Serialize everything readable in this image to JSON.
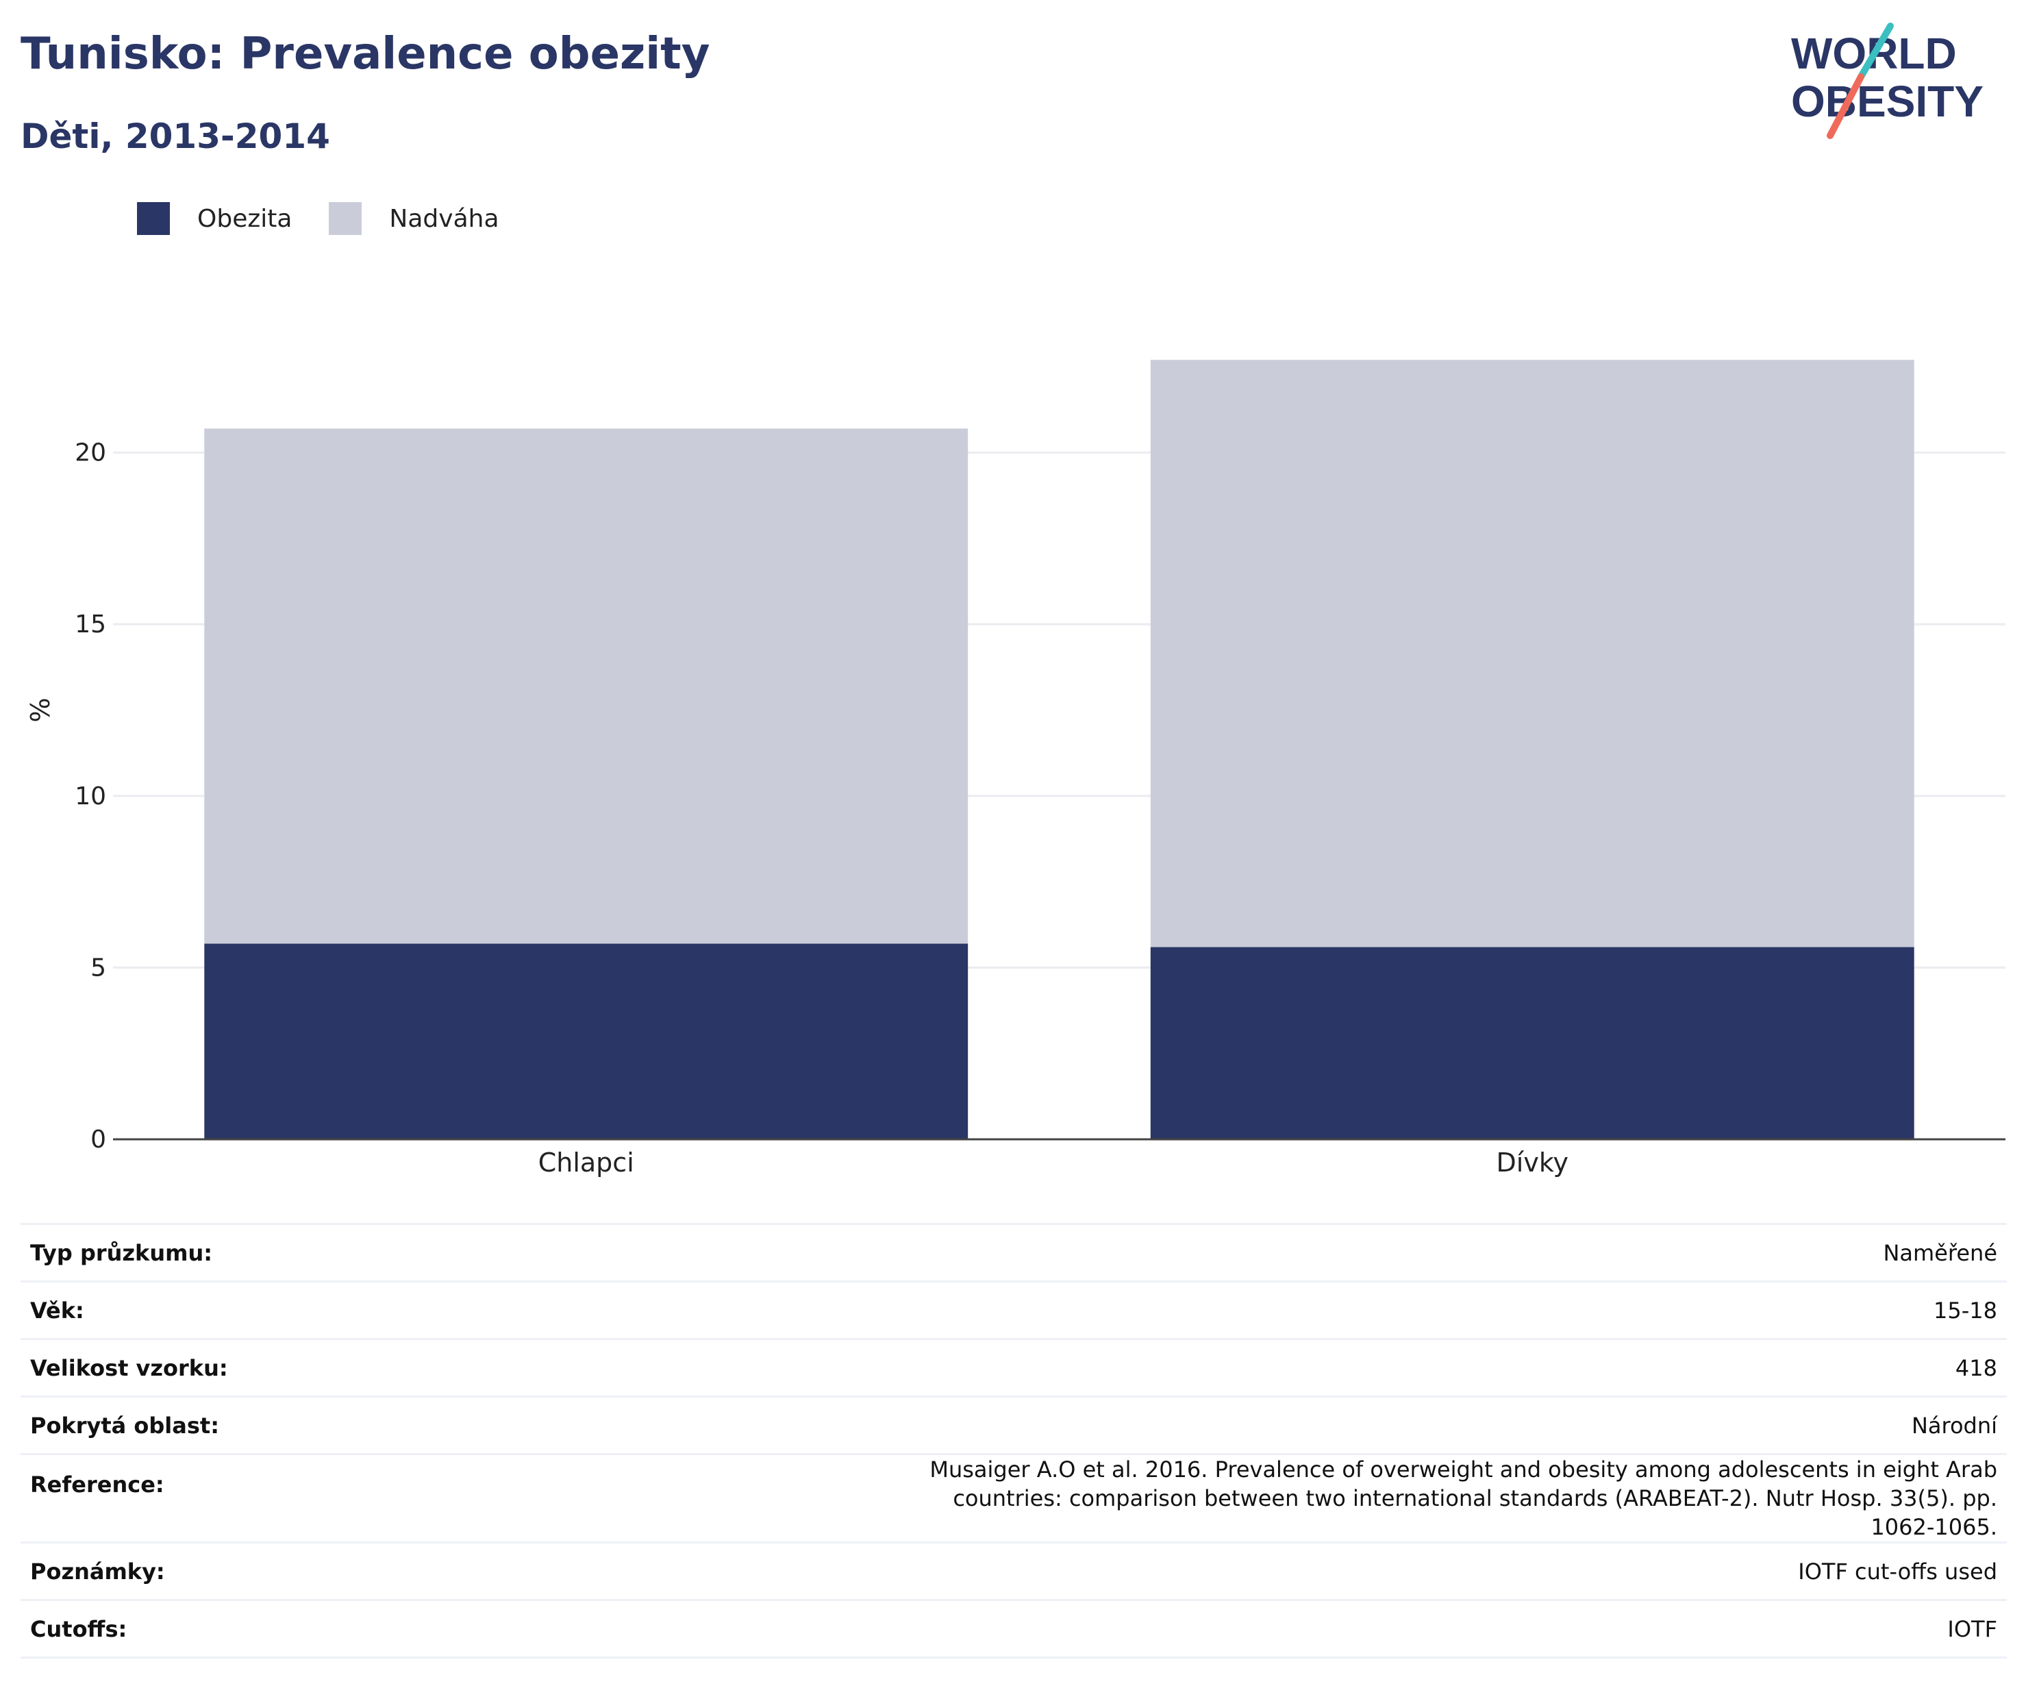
{
  "title": "Tunisko: Prevalence obezity",
  "subtitle": "Děti, 2013-2014",
  "logo": {
    "line1": "WORLD",
    "line2": "OBESITY"
  },
  "colors": {
    "obesity": "#2a3665",
    "overweight": "#cacdd9",
    "title": "#2a3665",
    "logo_teal": "#3bbfc1",
    "logo_coral": "#ef6a5a"
  },
  "chart_data": {
    "type": "bar",
    "stacked": true,
    "categories": [
      "Chlapci",
      "Dívky"
    ],
    "series": [
      {
        "name": "Obezita",
        "values": [
          5.7,
          5.6
        ]
      },
      {
        "name": "Nadváha",
        "values": [
          15.0,
          17.1
        ]
      }
    ],
    "totals": [
      20.7,
      22.7
    ],
    "ylabel": "%",
    "xlabel": "",
    "ylim": [
      0,
      25
    ],
    "yticks": [
      0,
      5,
      10,
      15,
      20
    ],
    "grid": true,
    "legend_position": "top-left"
  },
  "info": [
    {
      "label": "Typ průzkumu:",
      "value": "Naměřené"
    },
    {
      "label": "Věk:",
      "value": "15-18"
    },
    {
      "label": "Velikost vzorku:",
      "value": "418"
    },
    {
      "label": "Pokrytá oblast:",
      "value": "Národní"
    },
    {
      "label": "Reference:",
      "value": "Musaiger A.O et al. 2016. Prevalence of overweight and obesity among adolescents in eight Arab countries: comparison between two international standards (ARABEAT-2). Nutr Hosp. 33(5). pp. 1062-1065."
    },
    {
      "label": "Poznámky:",
      "value": "IOTF cut-offs used"
    },
    {
      "label": "Cutoffs:",
      "value": "IOTF"
    }
  ]
}
